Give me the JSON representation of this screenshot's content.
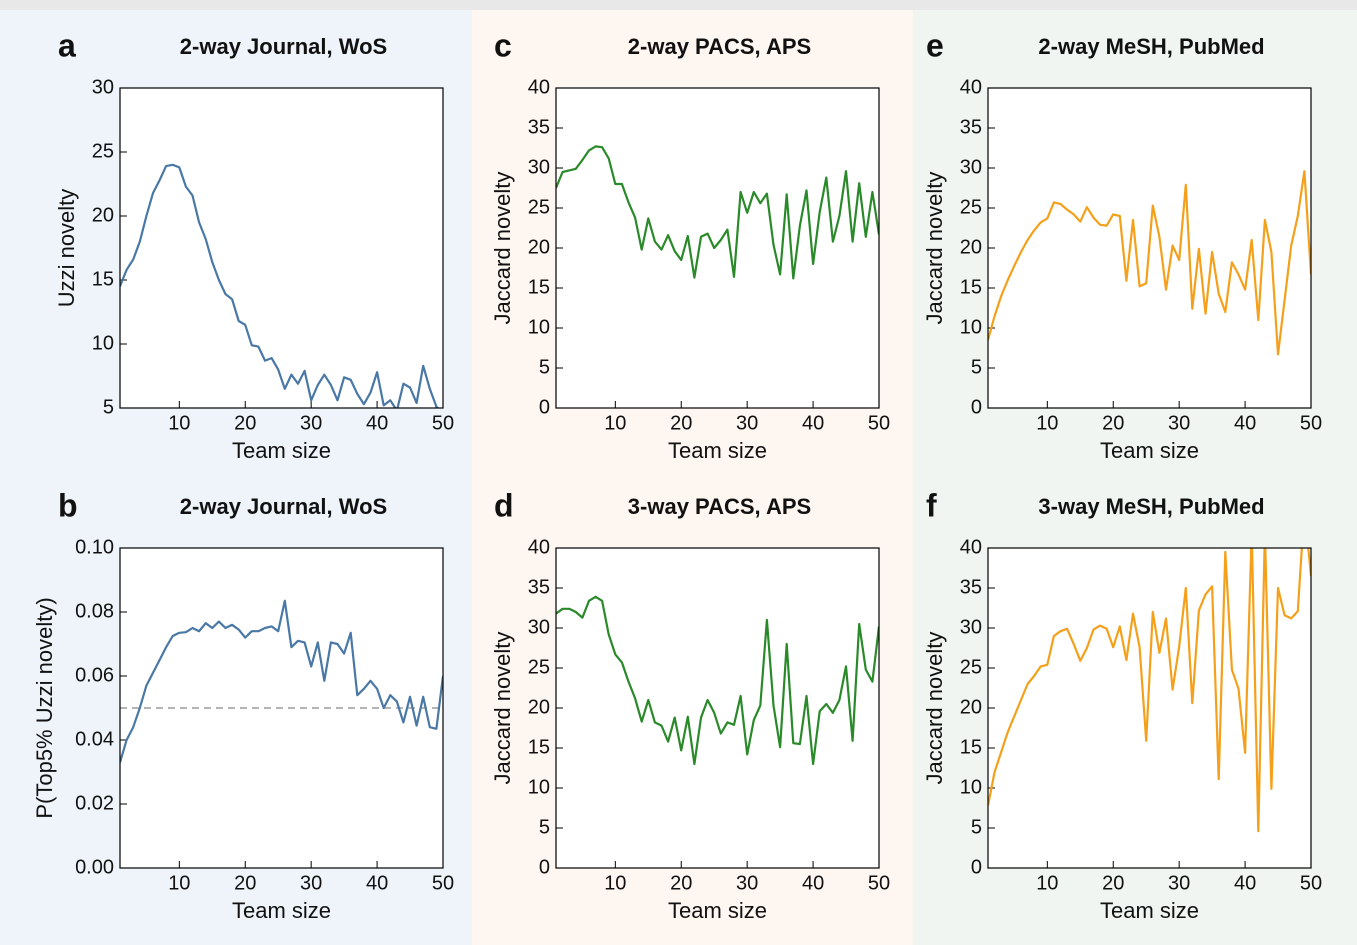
{
  "chart_data": [
    {
      "type": "line",
      "label": "a",
      "title": "2-way Journal, WoS",
      "x_label": "Team size",
      "y_label": "Uzzi novelty",
      "color": "#4a78a6",
      "x": [
        1,
        2,
        3,
        4,
        5,
        6,
        7,
        8,
        9,
        10,
        11,
        12,
        13,
        14,
        15,
        16,
        17,
        18,
        19,
        20,
        21,
        22,
        23,
        24,
        25,
        26,
        27,
        28,
        29,
        30,
        31,
        32,
        33,
        34,
        35,
        36,
        37,
        38,
        39,
        40,
        41,
        42,
        43,
        44,
        45,
        46,
        47,
        48,
        49,
        50
      ],
      "values": [
        14.5,
        15.8,
        16.6,
        18.0,
        20.0,
        21.8,
        22.8,
        23.9,
        24.0,
        23.8,
        22.3,
        21.6,
        19.5,
        18.2,
        16.4,
        15.0,
        13.9,
        13.5,
        11.8,
        11.5,
        9.9,
        9.8,
        8.7,
        8.9,
        8.0,
        6.5,
        7.6,
        6.9,
        7.9,
        5.6,
        6.8,
        7.6,
        6.8,
        5.6,
        7.4,
        7.2,
        6.1,
        5.3,
        6.2,
        7.8,
        5.2,
        5.6,
        4.8,
        6.9,
        6.6,
        5.4,
        8.3,
        6.5,
        5.1,
        4.6
      ],
      "xlim": [
        1,
        50
      ],
      "xticks": [
        10,
        20,
        30,
        40,
        50
      ],
      "ylim": [
        5,
        30
      ],
      "yticks": [
        5,
        10,
        15,
        20,
        25,
        30
      ]
    },
    {
      "type": "line",
      "label": "b",
      "title": "2-way Journal, WoS",
      "x_label": "Team size",
      "y_label": "P(Top5% Uzzi novelty)",
      "color": "#4a78a6",
      "x": [
        1,
        2,
        3,
        4,
        5,
        6,
        7,
        8,
        9,
        10,
        11,
        12,
        13,
        14,
        15,
        16,
        17,
        18,
        19,
        20,
        21,
        22,
        23,
        24,
        25,
        26,
        27,
        28,
        29,
        30,
        31,
        32,
        33,
        34,
        35,
        36,
        37,
        38,
        39,
        40,
        41,
        42,
        43,
        44,
        45,
        46,
        47,
        48,
        49,
        50
      ],
      "values": [
        0.033,
        0.04,
        0.044,
        0.05,
        0.057,
        0.061,
        0.065,
        0.069,
        0.0725,
        0.0735,
        0.0737,
        0.075,
        0.074,
        0.0765,
        0.075,
        0.077,
        0.075,
        0.076,
        0.0745,
        0.072,
        0.074,
        0.074,
        0.075,
        0.0755,
        0.074,
        0.0835,
        0.069,
        0.071,
        0.0705,
        0.063,
        0.0705,
        0.0585,
        0.0705,
        0.07,
        0.067,
        0.0735,
        0.054,
        0.056,
        0.0585,
        0.056,
        0.05,
        0.054,
        0.052,
        0.0455,
        0.0535,
        0.0445,
        0.0535,
        0.044,
        0.0435,
        0.06
      ],
      "hline": 0.05,
      "xlim": [
        1,
        50
      ],
      "xticks": [
        10,
        20,
        30,
        40,
        50
      ],
      "ylim": [
        0,
        0.1
      ],
      "yticks": [
        {
          "value": 0,
          "label": "0.00"
        },
        {
          "value": 0.02,
          "label": "0.02"
        },
        {
          "value": 0.04,
          "label": "0.04"
        },
        {
          "value": 0.06,
          "label": "0.06"
        },
        {
          "value": 0.08,
          "label": "0.08"
        },
        {
          "value": 0.1,
          "label": "0.10"
        }
      ]
    },
    {
      "type": "line",
      "label": "c",
      "title": "2-way PACS, APS",
      "x_label": "Team size",
      "y_label": "Jaccard novelty",
      "color": "#2a8a2a",
      "x": [
        1,
        2,
        3,
        4,
        5,
        6,
        7,
        8,
        9,
        10,
        11,
        12,
        13,
        14,
        15,
        16,
        17,
        18,
        19,
        20,
        21,
        22,
        23,
        24,
        25,
        26,
        27,
        28,
        29,
        30,
        31,
        32,
        33,
        34,
        35,
        36,
        37,
        38,
        39,
        40,
        41,
        42,
        43,
        44,
        45,
        46,
        47,
        48,
        49,
        50
      ],
      "values": [
        27.5,
        29.5,
        29.7,
        29.9,
        31.0,
        32.2,
        32.7,
        32.6,
        31.2,
        28.0,
        28.0,
        25.7,
        23.8,
        19.8,
        23.7,
        20.8,
        19.8,
        21.6,
        19.6,
        18.5,
        21.5,
        16.3,
        21.4,
        21.8,
        20.0,
        21.0,
        22.3,
        16.4,
        27.0,
        24.4,
        27.0,
        25.6,
        26.8,
        20.4,
        16.7,
        26.7,
        16.2,
        22.8,
        27.2,
        18.0,
        24.5,
        28.8,
        20.8,
        24.0,
        29.6,
        20.8,
        28.1,
        21.4,
        27.0,
        21.7
      ],
      "xlim": [
        1,
        50
      ],
      "xticks": [
        10,
        20,
        30,
        40,
        50
      ],
      "ylim": [
        0,
        40
      ],
      "yticks": [
        0,
        5,
        10,
        15,
        20,
        25,
        30,
        35,
        40
      ]
    },
    {
      "type": "line",
      "label": "d",
      "title": "3-way PACS, APS",
      "x_label": "Team size",
      "y_label": "Jaccard novelty",
      "color": "#2a8a2a",
      "x": [
        1,
        2,
        3,
        4,
        5,
        6,
        7,
        8,
        9,
        10,
        11,
        12,
        13,
        14,
        15,
        16,
        17,
        18,
        19,
        20,
        21,
        22,
        23,
        24,
        25,
        26,
        27,
        28,
        29,
        30,
        31,
        32,
        33,
        34,
        35,
        36,
        37,
        38,
        39,
        40,
        41,
        42,
        43,
        44,
        45,
        46,
        47,
        48,
        49,
        50
      ],
      "values": [
        31.8,
        32.4,
        32.4,
        32.0,
        31.3,
        33.4,
        33.9,
        33.4,
        29.2,
        26.7,
        25.7,
        23.3,
        21.2,
        18.3,
        21.0,
        18.2,
        17.8,
        15.8,
        18.8,
        14.7,
        18.9,
        13.0,
        18.8,
        21.0,
        19.4,
        16.8,
        18.2,
        17.9,
        21.5,
        14.2,
        18.5,
        20.3,
        31.0,
        20.3,
        15.1,
        28.0,
        15.6,
        15.5,
        21.5,
        13.0,
        19.6,
        20.5,
        19.4,
        21.0,
        25.2,
        15.9,
        30.5,
        24.8,
        23.3,
        30.2
      ],
      "xlim": [
        1,
        50
      ],
      "xticks": [
        10,
        20,
        30,
        40,
        50
      ],
      "ylim": [
        0,
        40
      ],
      "yticks": [
        0,
        5,
        10,
        15,
        20,
        25,
        30,
        35,
        40
      ]
    },
    {
      "type": "line",
      "label": "e",
      "title": "2-way MeSH, PubMed",
      "x_label": "Team size",
      "y_label": "Jaccard novelty",
      "color": "#f5a01a",
      "x": [
        1,
        2,
        3,
        4,
        5,
        6,
        7,
        8,
        9,
        10,
        11,
        12,
        13,
        14,
        15,
        16,
        17,
        18,
        19,
        20,
        21,
        22,
        23,
        24,
        25,
        26,
        27,
        28,
        29,
        30,
        31,
        32,
        33,
        34,
        35,
        36,
        37,
        38,
        39,
        40,
        41,
        42,
        43,
        44,
        45,
        46,
        47,
        48,
        49,
        50
      ],
      "values": [
        8.5,
        11.5,
        14.0,
        16.0,
        17.8,
        19.5,
        21.0,
        22.2,
        23.2,
        23.7,
        25.7,
        25.5,
        24.8,
        24.2,
        23.3,
        25.1,
        23.8,
        22.9,
        22.8,
        24.2,
        24.0,
        15.9,
        23.5,
        15.2,
        15.6,
        25.3,
        21.4,
        14.8,
        20.3,
        18.5,
        27.9,
        12.4,
        19.9,
        11.8,
        19.5,
        14.3,
        12.0,
        18.2,
        16.7,
        14.8,
        21.0,
        11.0,
        23.5,
        19.5,
        6.7,
        13.5,
        20.3,
        24.0,
        29.6,
        16.7
      ],
      "xlim": [
        1,
        50
      ],
      "xticks": [
        10,
        20,
        30,
        40,
        50
      ],
      "ylim": [
        0,
        40
      ],
      "yticks": [
        0,
        5,
        10,
        15,
        20,
        25,
        30,
        35,
        40
      ]
    },
    {
      "type": "line",
      "label": "f",
      "title": "3-way MeSH, PubMed",
      "x_label": "Team size",
      "y_label": "Jaccard novelty",
      "color": "#f5a01a",
      "x": [
        1,
        2,
        3,
        4,
        5,
        6,
        7,
        8,
        9,
        10,
        11,
        12,
        13,
        14,
        15,
        16,
        17,
        18,
        19,
        20,
        21,
        22,
        23,
        24,
        25,
        26,
        27,
        28,
        29,
        30,
        31,
        32,
        33,
        34,
        35,
        36,
        37,
        38,
        39,
        40,
        41,
        42,
        43,
        44,
        45,
        46,
        47,
        48,
        49,
        50
      ],
      "values": [
        7.8,
        12.0,
        14.5,
        17.0,
        19.0,
        21.0,
        23.0,
        24.0,
        25.2,
        25.4,
        29.0,
        29.6,
        29.9,
        28.0,
        25.9,
        27.5,
        29.8,
        30.3,
        29.9,
        27.6,
        30.2,
        26.0,
        31.8,
        27.6,
        15.9,
        32.0,
        26.9,
        31.2,
        22.3,
        27.7,
        35.0,
        20.6,
        32.2,
        34.2,
        35.2,
        11.1,
        39.5,
        24.8,
        22.4,
        14.4,
        42.0,
        4.6,
        42.0,
        9.9,
        35.0,
        31.6,
        31.2,
        32.1,
        45.0,
        36.5
      ],
      "xlim": [
        1,
        50
      ],
      "xticks": [
        10,
        20,
        30,
        40,
        50
      ],
      "ylim": [
        0,
        40
      ],
      "yticks": [
        0,
        5,
        10,
        15,
        20,
        25,
        30,
        35,
        40
      ]
    }
  ]
}
